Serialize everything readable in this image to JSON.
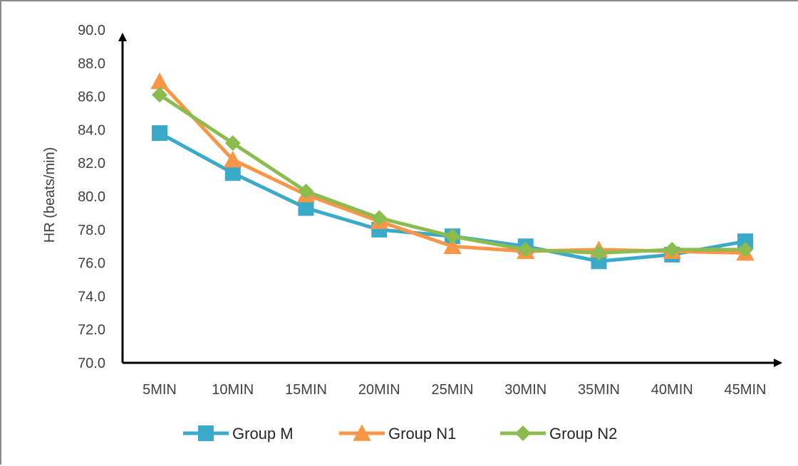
{
  "chart_data": {
    "type": "line",
    "title": "",
    "xlabel": "",
    "ylabel": "HR (beats/min)",
    "categories": [
      "5MIN",
      "10MIN",
      "15MIN",
      "20MIN",
      "25MIN",
      "30MIN",
      "35MIN",
      "40MIN",
      "45MIN"
    ],
    "ylim": [
      70,
      90
    ],
    "yticks": [
      "70.0",
      "72.0",
      "74.0",
      "76.0",
      "78.0",
      "80.0",
      "82.0",
      "84.0",
      "86.0",
      "88.0",
      "90.0"
    ],
    "grid": false,
    "legend_position": "bottom",
    "series": [
      {
        "name": "Group M",
        "color": "#3ba9c8",
        "marker": "square",
        "values": [
          83.8,
          81.4,
          79.3,
          78.0,
          77.6,
          77.0,
          76.1,
          76.5,
          77.3
        ]
      },
      {
        "name": "Group N1",
        "color": "#f79646",
        "marker": "triangle",
        "values": [
          86.9,
          82.2,
          80.1,
          78.5,
          77.0,
          76.7,
          76.8,
          76.7,
          76.6
        ]
      },
      {
        "name": "Group N2",
        "color": "#8cbc4f",
        "marker": "diamond",
        "values": [
          86.1,
          83.2,
          80.3,
          78.7,
          77.6,
          76.8,
          76.6,
          76.8,
          76.8
        ]
      }
    ]
  }
}
